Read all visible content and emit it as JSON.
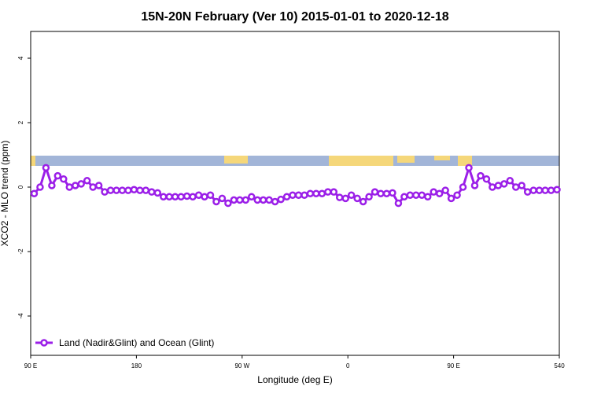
{
  "chart_data": {
    "type": "line",
    "title": "15N-20N February (Ver 10)   2015-01-01 to 2020-12-18",
    "x_label": "Longitude (deg E)",
    "y_label": "XCO2 - MLO trend (ppm)",
    "x": [
      93,
      98,
      103,
      108,
      113,
      118,
      123,
      128,
      133,
      138,
      143,
      148,
      153,
      158,
      163,
      168,
      173,
      178,
      183,
      188,
      193,
      198,
      203,
      208,
      213,
      218,
      223,
      228,
      233,
      238,
      243,
      248,
      253,
      258,
      263,
      268,
      273,
      278,
      283,
      288,
      293,
      298,
      303,
      308,
      313,
      318,
      323,
      328,
      333,
      338,
      343,
      348,
      353,
      358,
      363,
      368,
      373,
      378,
      383,
      388,
      393,
      398,
      403,
      408,
      413,
      418,
      423,
      428,
      433,
      438,
      443,
      448,
      453,
      458,
      463,
      468,
      473,
      478,
      483,
      488,
      493,
      498,
      503,
      508,
      513,
      518,
      523,
      528,
      533,
      538
    ],
    "series": [
      {
        "name": "Land (Nadir&Glint) and Ocean (Glint)",
        "color": "#9b1fe8",
        "values": [
          -0.2,
          0,
          0.6,
          0.05,
          0.35,
          0.25,
          0,
          0.05,
          0.1,
          0.2,
          0,
          0.05,
          -0.15,
          -0.1,
          -0.1,
          -0.1,
          -0.1,
          -0.08,
          -0.1,
          -0.1,
          -0.15,
          -0.18,
          -0.3,
          -0.3,
          -0.3,
          -0.3,
          -0.28,
          -0.3,
          -0.25,
          -0.3,
          -0.25,
          -0.45,
          -0.35,
          -0.5,
          -0.4,
          -0.4,
          -0.4,
          -0.3,
          -0.4,
          -0.4,
          -0.4,
          -0.45,
          -0.38,
          -0.3,
          -0.25,
          -0.25,
          -0.25,
          -0.2,
          -0.2,
          -0.2,
          -0.15,
          -0.15,
          -0.32,
          -0.35,
          -0.25,
          -0.35,
          -0.45,
          -0.3,
          -0.15,
          -0.2,
          -0.2,
          -0.18,
          -0.5,
          -0.3,
          -0.25,
          -0.25,
          -0.25,
          -0.3,
          -0.15,
          -0.2,
          -0.1,
          -0.35,
          -0.25,
          0,
          0.6,
          0.05,
          0.35,
          0.25,
          0,
          0.05,
          0.1,
          0.2,
          0,
          0.05,
          -0.15,
          -0.1,
          -0.1,
          -0.1,
          -0.1,
          -0.08
        ]
      }
    ],
    "xlim": [
      90,
      540
    ],
    "xticks": [
      {
        "value": 90,
        "label": "90 E"
      },
      180,
      {
        "value": 270,
        "label": "90 W"
      },
      {
        "value": 360,
        "label": "0"
      },
      {
        "value": 450,
        "label": "90 E"
      },
      540
    ],
    "ylim": [
      -5.22,
      4.83
    ],
    "yticks": [
      -4,
      -2,
      0,
      2,
      4
    ],
    "legend": "bottom-left"
  }
}
